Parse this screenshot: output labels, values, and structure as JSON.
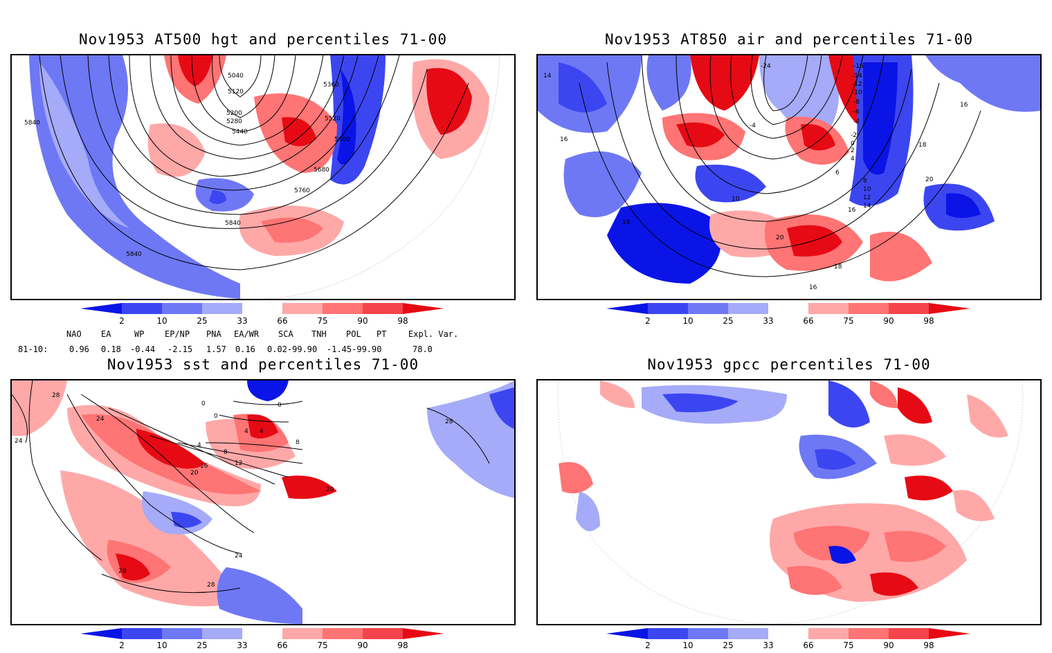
{
  "panels": [
    {
      "id": "p1",
      "title": "Nov1953 AT500 hgt and percentiles 71-00",
      "contour_labels": [
        "5040",
        "5120",
        "5200",
        "5280",
        "5360",
        "5440",
        "5520",
        "5600",
        "5680",
        "5760",
        "5840",
        "5840",
        "5840"
      ]
    },
    {
      "id": "p2",
      "title": "Nov1953 AT850 air and percentiles 71-00",
      "contour_labels": [
        "-24",
        "-16",
        "-14",
        "-12",
        "-10",
        "-8",
        "-6",
        "-4",
        "-2",
        "0",
        "2",
        "4",
        "6",
        "8",
        "10",
        "12",
        "14",
        "16",
        "18",
        "20",
        "14",
        "16",
        "16",
        "18",
        "20",
        "18",
        "16",
        "10",
        "-4"
      ]
    },
    {
      "id": "p3",
      "title": "Nov1953 sst and percentiles 71-00",
      "contour_labels": [
        "28",
        "24",
        "24",
        "0",
        "0",
        "0",
        "4",
        "4",
        "4",
        "8",
        "8",
        "12",
        "16",
        "20",
        "20",
        "24",
        "28",
        "28",
        "28"
      ]
    },
    {
      "id": "p4",
      "title": "Nov1953 gpcc percentiles 71-00",
      "contour_labels": []
    }
  ],
  "colorbar": {
    "ticks": [
      "2",
      "10",
      "25",
      "33",
      "66",
      "75",
      "90",
      "98"
    ],
    "colors": [
      "#0a14e6",
      "#3c46f0",
      "#6e78f5",
      "#a5abf8",
      "#ffffff",
      "#ffa8a8",
      "#ff7474",
      "#f5444c",
      "#e60a14"
    ]
  },
  "indices": {
    "header": [
      "NAO",
      "EA",
      "WP",
      "EP/NP",
      "PNA",
      "EA/WR",
      "SCA",
      "TNH",
      "POL",
      "PT",
      "Expl. Var."
    ],
    "row_label": "81-10:",
    "values": [
      "0.96",
      "0.18",
      "-0.44",
      "-2.15",
      "1.57",
      "0.16",
      "0.02-99.90",
      "-1.45-99.90",
      "",
      "",
      "78.0"
    ]
  },
  "icons": [
    "colorbar-triangle-left-icon",
    "colorbar-triangle-right-icon"
  ]
}
